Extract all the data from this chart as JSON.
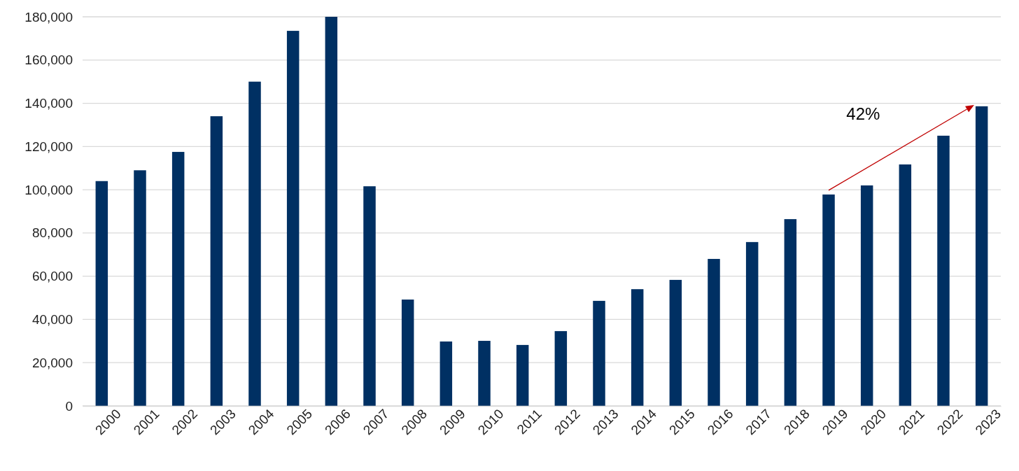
{
  "chart_data": {
    "type": "bar",
    "categories": [
      "2000",
      "2001",
      "2002",
      "2003",
      "2004",
      "2005",
      "2006",
      "2007",
      "2008",
      "2009",
      "2010",
      "2011",
      "2012",
      "2013",
      "2014",
      "2015",
      "2016",
      "2017",
      "2018",
      "2019",
      "2020",
      "2021",
      "2022",
      "2023"
    ],
    "values": [
      104000,
      109000,
      117500,
      134000,
      150000,
      173500,
      180000,
      101600,
      49200,
      29800,
      30100,
      28200,
      34600,
      48600,
      54000,
      58300,
      68000,
      75800,
      86400,
      97800,
      102000,
      111700,
      125000,
      138600
    ],
    "color": "#003063",
    "ylim": [
      0,
      180000
    ],
    "yticks": [
      0,
      {
        "value": 20000,
        "label": "20,000"
      },
      {
        "value": 40000,
        "label": "40,000"
      },
      {
        "value": 60000,
        "label": "60,000"
      },
      {
        "value": 80000,
        "label": "80,000"
      },
      {
        "value": 100000,
        "label": "100,000"
      },
      {
        "value": 120000,
        "label": "120,000"
      },
      {
        "value": 140000,
        "label": "140,000"
      },
      {
        "value": 160000,
        "label": "160,000"
      },
      {
        "value": 180000,
        "label": "180,000"
      }
    ],
    "grid": "y",
    "annotations": [
      "42%"
    ]
  }
}
